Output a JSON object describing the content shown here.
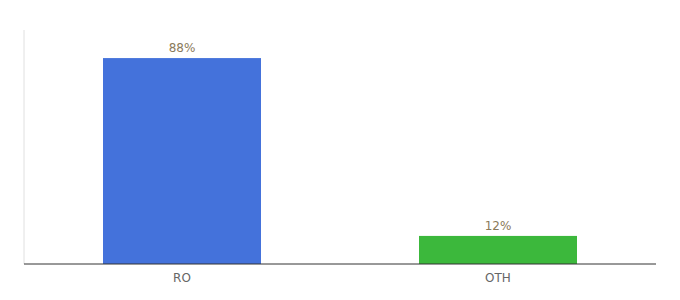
{
  "chart_data": {
    "type": "bar",
    "categories": [
      "RO",
      "OTH"
    ],
    "values": [
      88,
      12
    ],
    "value_labels": [
      "88%",
      "12%"
    ],
    "colors": [
      "#4472db",
      "#3cb83c"
    ],
    "ylim": [
      0,
      100
    ],
    "data_labels": true,
    "tick_labels": "x"
  }
}
